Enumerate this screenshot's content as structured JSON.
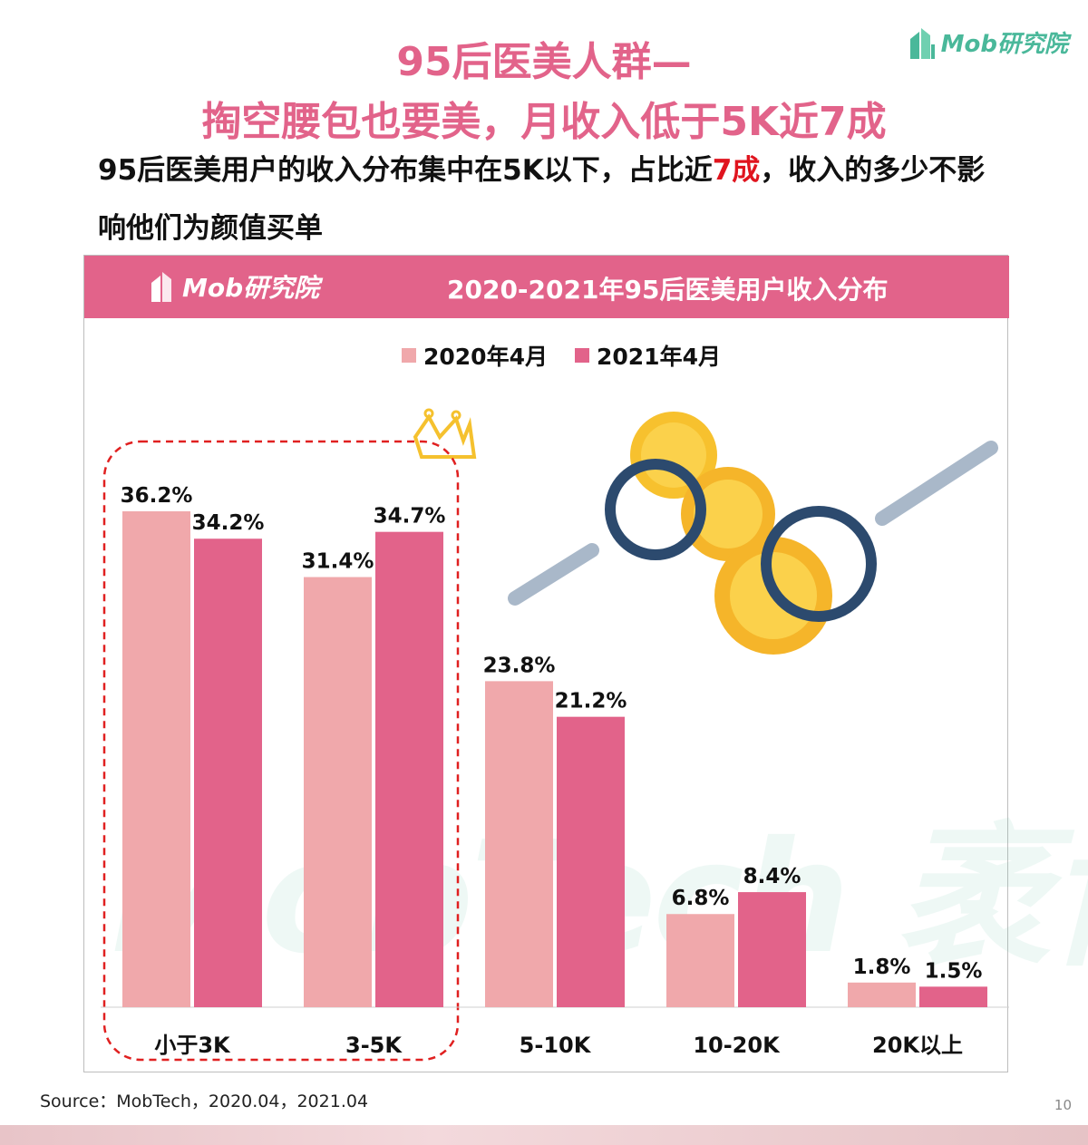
{
  "header": {
    "title_line1": "95后医美人群—",
    "title_line2": "掏空腰包也要美，月收入低于5K近7成",
    "logo_text": "Mob研究院"
  },
  "subtitle": {
    "part1": "95后医美用户的收入分布集中在5K以下，占比近",
    "highlight": "7成",
    "part2": "，收入的多少不影响他们为颜值买单"
  },
  "panel": {
    "logo_text": "Mob研究院",
    "title": "2020-2021年95后医美用户收入分布"
  },
  "watermark": "MobTech 袤博",
  "colors": {
    "accent": "#e2638a",
    "series_2020": "#f0a8ab",
    "series_2021": "#e2638a",
    "highlight_red": "#e0141e",
    "logo_green": "#4ab89a"
  },
  "chart_data": {
    "type": "bar",
    "title": "2020-2021年95后医美用户收入分布",
    "categories": [
      "小于3K",
      "3-5K",
      "5-10K",
      "10-20K",
      "20K以上"
    ],
    "series": [
      {
        "name": "2020年4月",
        "values": [
          36.2,
          31.4,
          23.8,
          6.8,
          1.8
        ],
        "labels": [
          "36.2%",
          "31.4%",
          "23.8%",
          "6.8%",
          "1.8%"
        ]
      },
      {
        "name": "2021年4月",
        "values": [
          34.2,
          34.7,
          21.2,
          8.4,
          1.5
        ],
        "labels": [
          "34.2%",
          "34.7%",
          "21.2%",
          "8.4%",
          "1.5%"
        ]
      }
    ],
    "ylim": [
      0,
      36.2
    ],
    "unit": "%",
    "legend_position": "top-center",
    "grid": false,
    "highlighted_categories": [
      "小于3K",
      "3-5K"
    ]
  },
  "footer": {
    "source": "Source：MobTech，2020.04，2021.04",
    "page_number": "10"
  }
}
